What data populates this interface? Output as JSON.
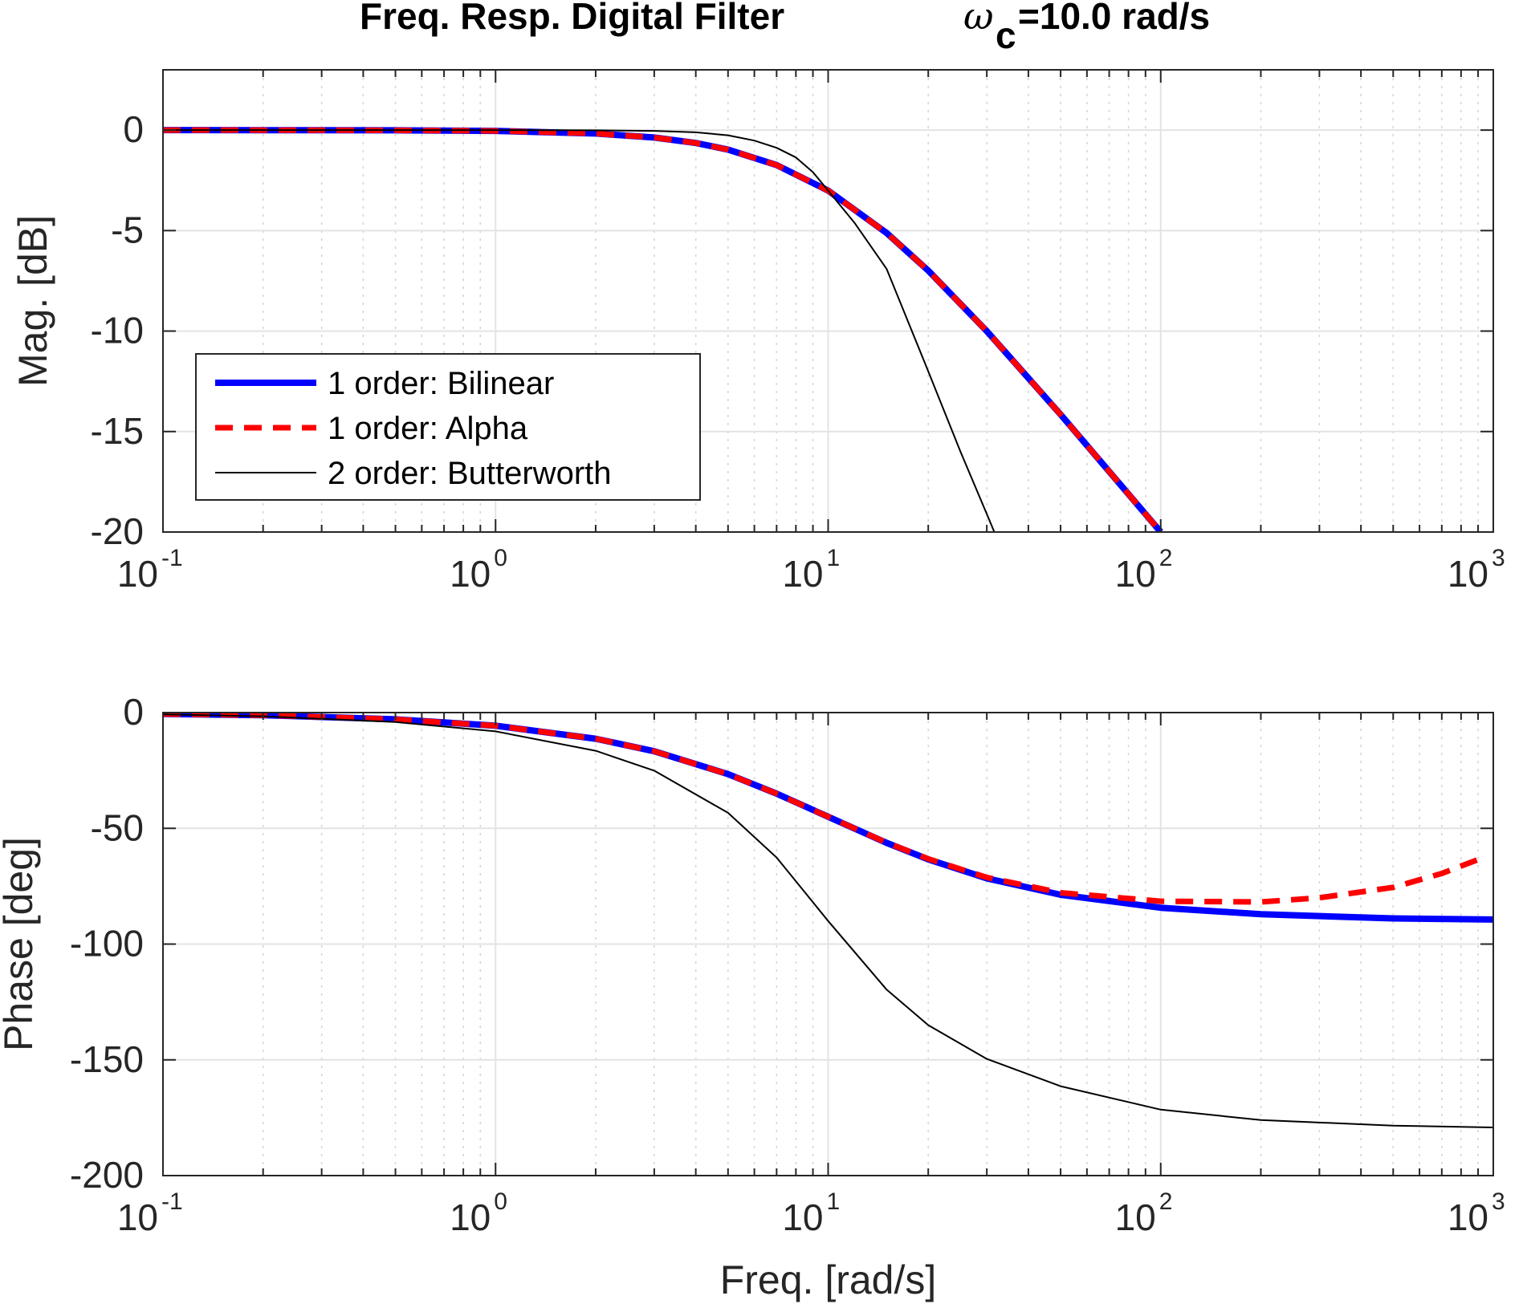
{
  "figure": {
    "title_main": "Freq. Resp. Digital Filter",
    "title_omega_symbol": "ω",
    "title_omega_subscript": "c",
    "title_omega_value": "=10.0 rad/s"
  },
  "colors": {
    "bilinear": "#0000ff",
    "alpha": "#ff0000",
    "butterworth": "#000000"
  },
  "chart_data": [
    {
      "type": "line",
      "xscale": "log",
      "xlim": [
        0.1,
        1000
      ],
      "ylim": [
        -20,
        3
      ],
      "xlabel": "",
      "ylabel": "Mag. [dB]",
      "grid": true,
      "legend_position": "lower-left",
      "x_ticks": [
        0.1,
        1,
        10,
        100,
        1000
      ],
      "x_tick_base": "10",
      "x_tick_exponents": [
        "-1",
        "0",
        "1",
        "2",
        "3"
      ],
      "y_ticks": [
        0,
        -5,
        -10,
        -15,
        -20
      ],
      "y_tick_labels": [
        "0",
        "-5",
        "-10",
        "-15",
        "-20"
      ],
      "series": [
        {
          "name": "1 order: Bilinear",
          "style": "solid-thick",
          "x": [
            0.1,
            0.2,
            0.5,
            1,
            2,
            3,
            4,
            5,
            7,
            10,
            15,
            20,
            30,
            50,
            70,
            100
          ],
          "y": [
            0,
            -0.002,
            -0.01,
            -0.04,
            -0.17,
            -0.37,
            -0.64,
            -0.97,
            -1.74,
            -3.01,
            -5.12,
            -6.99,
            -10.0,
            -14.15,
            -16.99,
            -20.0
          ]
        },
        {
          "name": "1 order: Alpha",
          "style": "dashed-thick",
          "x": [
            0.1,
            0.2,
            0.5,
            1,
            2,
            3,
            4,
            5,
            7,
            10,
            15,
            20,
            30,
            50,
            70,
            100
          ],
          "y": [
            0,
            -0.002,
            -0.01,
            -0.04,
            -0.17,
            -0.37,
            -0.64,
            -0.97,
            -1.74,
            -3.01,
            -5.12,
            -6.99,
            -10.0,
            -14.15,
            -16.99,
            -20.0
          ]
        },
        {
          "name": "2 order: Butterworth",
          "style": "solid-thin",
          "x": [
            0.1,
            0.5,
            1,
            2,
            3,
            4,
            5,
            6,
            7,
            8,
            9,
            10,
            12,
            15,
            20,
            25,
            30,
            31.6
          ],
          "y": [
            0,
            0,
            0,
            -0.01,
            -0.04,
            -0.11,
            -0.26,
            -0.52,
            -0.88,
            -1.36,
            -2.09,
            -3.01,
            -4.61,
            -6.91,
            -12.0,
            -16.0,
            -19.1,
            -20.0
          ]
        }
      ]
    },
    {
      "type": "line",
      "xscale": "log",
      "xlim": [
        0.1,
        1000
      ],
      "ylim": [
        -200,
        0
      ],
      "xlabel": "Freq. [rad/s]",
      "ylabel": "Phase [deg]",
      "grid": true,
      "x_ticks": [
        0.1,
        1,
        10,
        100,
        1000
      ],
      "x_tick_base": "10",
      "x_tick_exponents": [
        "-1",
        "0",
        "1",
        "2",
        "3"
      ],
      "y_ticks": [
        0,
        -50,
        -100,
        -150,
        -200
      ],
      "y_tick_labels": [
        "0",
        "-50",
        "-100",
        "-150",
        "-200"
      ],
      "series": [
        {
          "name": "1 order: Bilinear",
          "style": "solid-thick",
          "x": [
            0.1,
            0.2,
            0.5,
            1,
            2,
            3,
            5,
            7,
            10,
            15,
            20,
            30,
            50,
            100,
            200,
            500,
            1000
          ],
          "y": [
            -0.6,
            -1.1,
            -2.9,
            -5.7,
            -11.3,
            -16.7,
            -26.6,
            -35.0,
            -45.0,
            -56.3,
            -63.4,
            -71.6,
            -78.7,
            -84.3,
            -87.1,
            -88.9,
            -89.4
          ]
        },
        {
          "name": "1 order: Alpha",
          "style": "dashed-thick",
          "x": [
            0.1,
            0.2,
            0.5,
            1,
            2,
            3,
            5,
            7,
            10,
            15,
            20,
            30,
            50,
            100,
            200,
            300,
            500,
            700,
            900
          ],
          "y": [
            -0.6,
            -1.1,
            -2.9,
            -5.7,
            -11.3,
            -16.7,
            -26.6,
            -35.0,
            -45.0,
            -56.2,
            -63.2,
            -71.2,
            -77.8,
            -81.5,
            -81.8,
            -80.0,
            -75.5,
            -69.5,
            -63.5
          ]
        },
        {
          "name": "2 order: Butterworth",
          "style": "solid-thin",
          "x": [
            0.1,
            0.2,
            0.5,
            1,
            2,
            3,
            5,
            7,
            10,
            15,
            20,
            30,
            50,
            100,
            200,
            500,
            1000
          ],
          "y": [
            -0.8,
            -1.6,
            -4.1,
            -8.1,
            -16.5,
            -25.1,
            -43.3,
            -62.6,
            -90.0,
            -119.7,
            -135.0,
            -149.6,
            -161.4,
            -171.5,
            -176.0,
            -178.4,
            -179.2
          ]
        }
      ]
    }
  ]
}
